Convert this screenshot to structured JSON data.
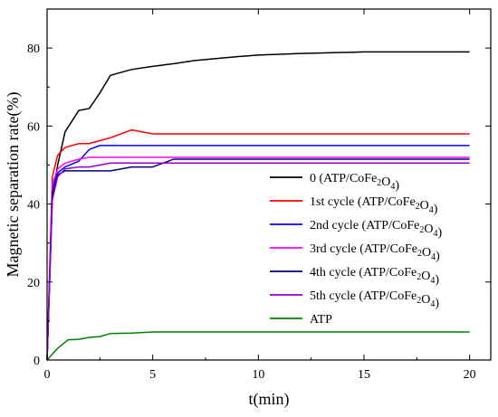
{
  "chart_data": {
    "type": "line",
    "xlabel": "t(min)",
    "ylabel": "Magnetic separation rate(%)",
    "xlim": [
      0,
      21
    ],
    "ylim": [
      0,
      90
    ],
    "x_ticks": [
      0,
      5,
      10,
      15,
      20
    ],
    "y_ticks": [
      0,
      20,
      40,
      60,
      80
    ],
    "grid": false,
    "legend_position": "right",
    "series": [
      {
        "name": "0 (ATP/CoFe2O4)",
        "legend_parts": [
          [
            "0 (ATP/CoFe",
            "n"
          ],
          [
            "2",
            "sub"
          ],
          [
            "O",
            "n"
          ],
          [
            "4",
            "sub"
          ],
          [
            ")",
            "n"
          ]
        ],
        "color": "#000000",
        "x": [
          0,
          0.25,
          0.5,
          0.85,
          1.5,
          2,
          2.5,
          3,
          4,
          5,
          6,
          7,
          8,
          9,
          10,
          12,
          15,
          20
        ],
        "y": [
          0,
          42,
          50,
          58.5,
          64,
          64.5,
          68.5,
          73,
          74.5,
          75.3,
          76,
          76.8,
          77.3,
          77.8,
          78.2,
          78.6,
          79,
          79
        ]
      },
      {
        "name": "1st cycle (ATP/CoFe2O4)",
        "legend_parts": [
          [
            "1st cycle (ATP/CoFe",
            "n"
          ],
          [
            "2",
            "sub"
          ],
          [
            "O",
            "n"
          ],
          [
            "4",
            "sub"
          ],
          [
            ")",
            "n"
          ]
        ],
        "color": "#ff0000",
        "x": [
          0,
          0.25,
          0.5,
          0.85,
          1.5,
          2,
          3,
          4,
          5,
          10,
          15,
          20
        ],
        "y": [
          0,
          47,
          52.5,
          54.5,
          55.5,
          55.5,
          57,
          59,
          58,
          58,
          58,
          58
        ]
      },
      {
        "name": "2nd cycle (ATP/CoFe2O4)",
        "legend_parts": [
          [
            "2nd cycle (ATP/CoFe",
            "n"
          ],
          [
            "2",
            "sub"
          ],
          [
            "O",
            "n"
          ],
          [
            "4",
            "sub"
          ],
          [
            ")",
            "n"
          ]
        ],
        "color": "#0000ff",
        "x": [
          0,
          0.25,
          0.5,
          0.85,
          1.5,
          2,
          2.5,
          3,
          5,
          10,
          15,
          20
        ],
        "y": [
          0,
          44,
          48,
          49.5,
          51,
          54,
          55,
          55,
          55,
          55,
          55,
          55
        ]
      },
      {
        "name": "3rd cycle (ATP/CoFe2O4)",
        "legend_parts": [
          [
            "3rd cycle (ATP/CoFe",
            "n"
          ],
          [
            "2",
            "sub"
          ],
          [
            "O",
            "n"
          ],
          [
            "4",
            "sub"
          ],
          [
            ")",
            "n"
          ]
        ],
        "color": "#ff00ff",
        "x": [
          0,
          0.25,
          0.5,
          0.85,
          1.5,
          2,
          3,
          5,
          10,
          15,
          20
        ],
        "y": [
          0,
          45,
          49,
          50.5,
          51.5,
          52,
          52,
          52,
          52,
          52,
          52
        ]
      },
      {
        "name": "4th cycle (ATP/CoFe2O4)",
        "legend_parts": [
          [
            "4th cycle (ATP/CoFe",
            "n"
          ],
          [
            "2",
            "sub"
          ],
          [
            "O",
            "n"
          ],
          [
            "4",
            "sub"
          ],
          [
            ")",
            "n"
          ]
        ],
        "color": "#000080",
        "x": [
          0,
          0.25,
          0.5,
          0.85,
          1.5,
          2,
          3,
          4,
          5,
          6,
          8,
          10,
          15,
          20
        ],
        "y": [
          0,
          43,
          47.5,
          48.5,
          48.5,
          48.5,
          48.5,
          49.5,
          49.5,
          51.5,
          51.5,
          51.5,
          51.5,
          51.5
        ]
      },
      {
        "name": "5th cycle (ATP/CoFe2O4)",
        "legend_parts": [
          [
            "5th cycle (ATP/CoFe",
            "n"
          ],
          [
            "2",
            "sub"
          ],
          [
            "O",
            "n"
          ],
          [
            "4",
            "sub"
          ],
          [
            ")",
            "n"
          ]
        ],
        "color": "#9400d3",
        "x": [
          0,
          0.25,
          0.5,
          0.85,
          1.5,
          2,
          3,
          5,
          10,
          15,
          20
        ],
        "y": [
          0,
          41,
          47,
          49,
          49.5,
          49.5,
          50.5,
          50.5,
          50.5,
          50.5,
          50.5
        ]
      },
      {
        "name": "ATP",
        "legend_parts": [
          [
            "ATP",
            "n"
          ]
        ],
        "color": "#008000",
        "x": [
          0,
          0.25,
          0.5,
          1,
          1.5,
          2,
          2.5,
          3,
          4,
          5,
          10,
          15,
          20
        ],
        "y": [
          0,
          1.5,
          3,
          5.2,
          5.3,
          5.8,
          6,
          6.8,
          6.9,
          7.2,
          7.2,
          7.2,
          7.2
        ]
      }
    ]
  }
}
